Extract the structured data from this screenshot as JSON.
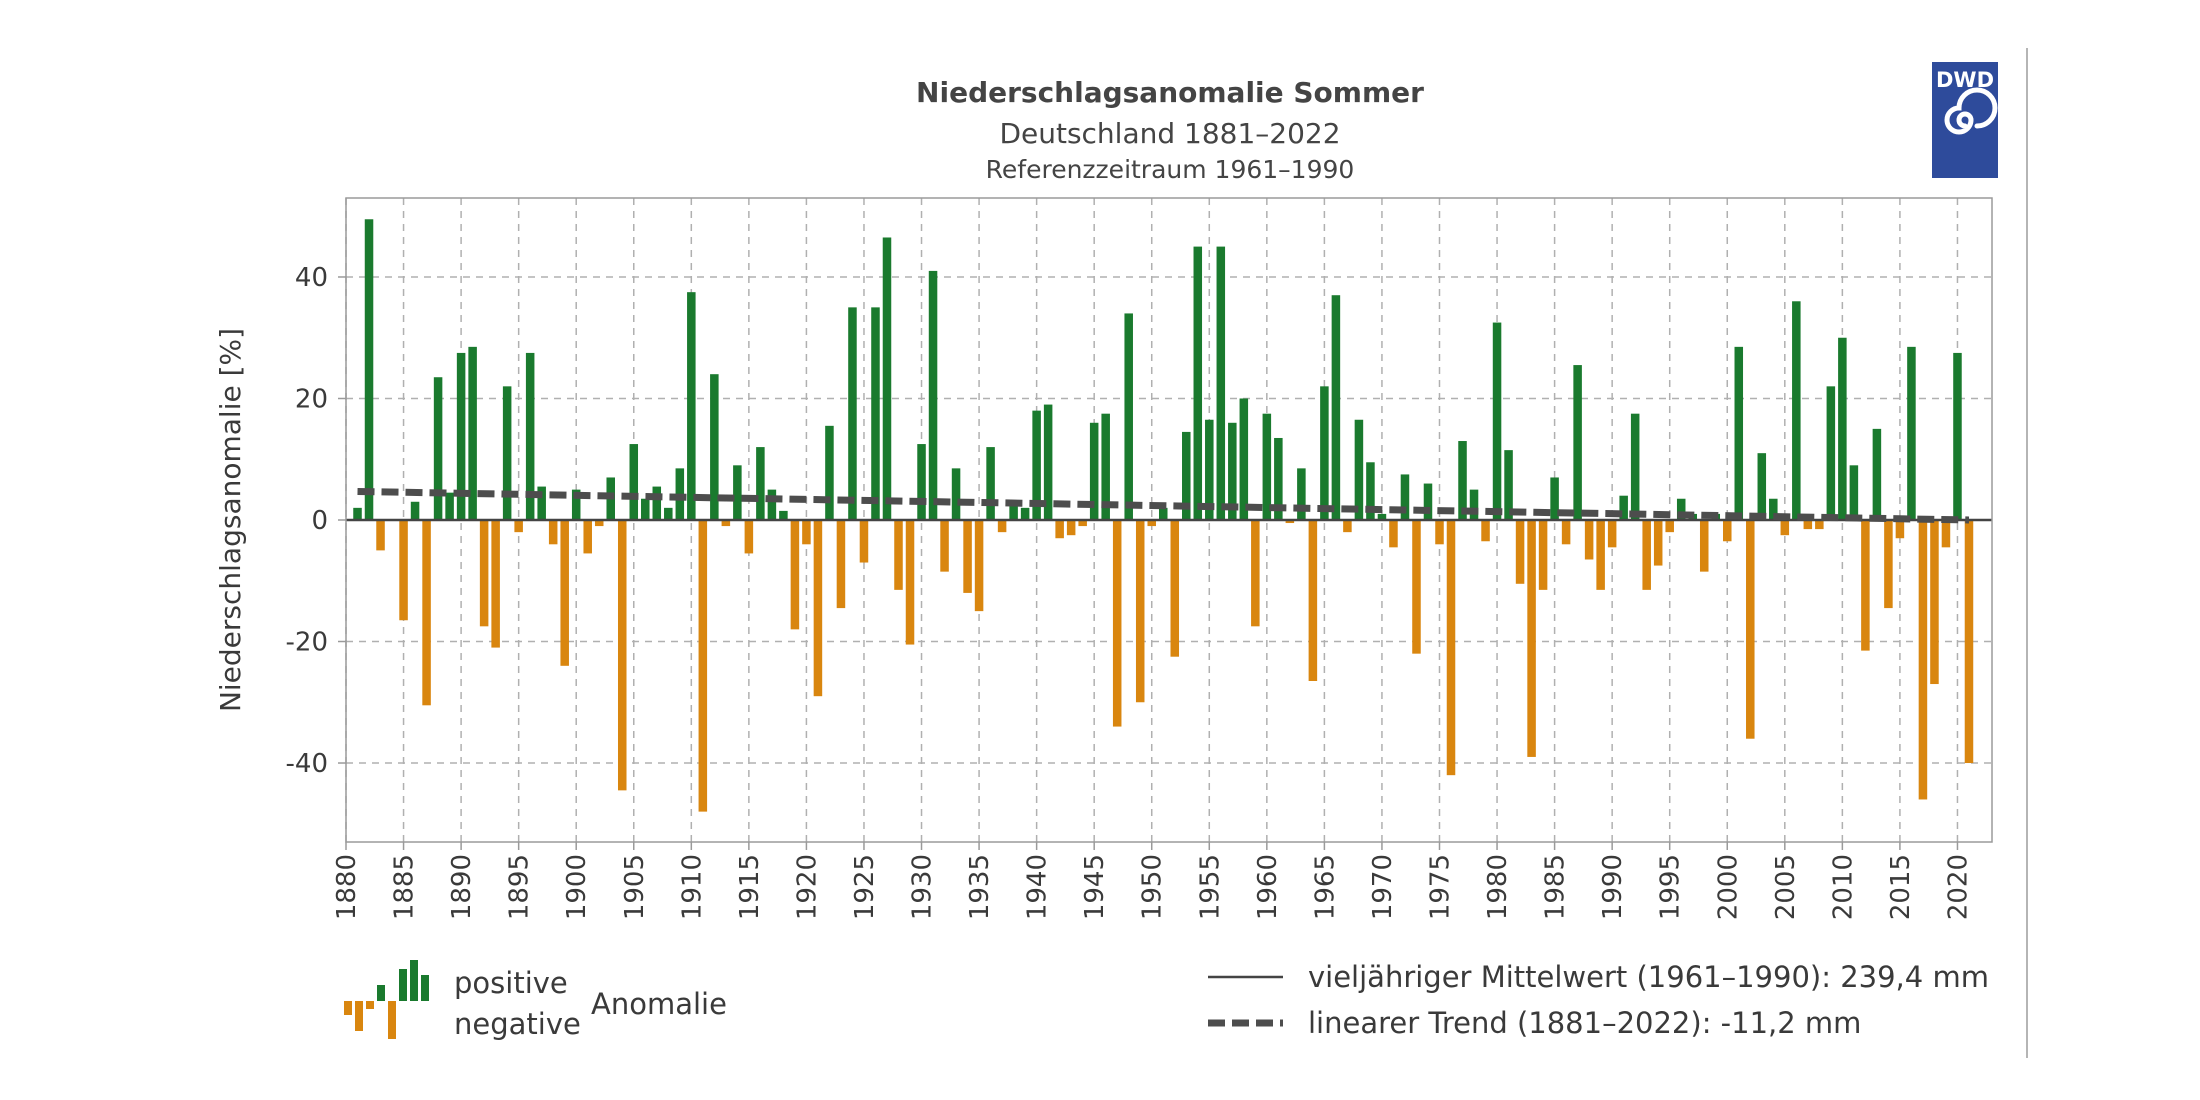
{
  "header": {
    "title": "Niederschlagsanomalie Sommer",
    "subtitle": "Deutschland 1881–2022",
    "reference": "Referenzzeitraum 1961–1990"
  },
  "logo": {
    "text": "DWD",
    "color": "#2e4b9b",
    "icon": "dwd-swirl-icon"
  },
  "colors": {
    "positive": "#1a7a2e",
    "negative": "#d9860f",
    "trend": "#4d4d4d",
    "grid": "#b0b0b0",
    "frame": "#9a9a9a"
  },
  "legend": {
    "positive": "positive",
    "negative": "negative",
    "anomaly": "Anomalie",
    "mean": "vieljähriger Mittelwert (1961–1990): 239,4 mm",
    "trend": "linearer Trend (1881–2022): -11,2 mm"
  },
  "chart_data": {
    "type": "bar",
    "title": "Niederschlagsanomalie Sommer",
    "ylabel": "Niederschlagsanomalie [%]",
    "xlim": [
      1880,
      2023
    ],
    "ylim": [
      -53,
      53
    ],
    "xticks": [
      "1880",
      "1885",
      "1890",
      "1895",
      "1900",
      "1905",
      "1910",
      "1915",
      "1920",
      "1925",
      "1930",
      "1935",
      "1940",
      "1945",
      "1950",
      "1955",
      "1960",
      "1965",
      "1970",
      "1975",
      "1980",
      "1985",
      "1990",
      "1995",
      "2000",
      "2005",
      "2010",
      "2015",
      "2020"
    ],
    "yticks": [
      "40",
      "20",
      "0",
      "-20",
      "-40"
    ],
    "grid": true,
    "start_year": 1881,
    "values": [
      2,
      49.5,
      -5,
      0,
      -16.5,
      3,
      -30.5,
      23.5,
      4.5,
      27.5,
      28.5,
      -17.5,
      -21,
      22,
      -2,
      27.5,
      5.5,
      -4,
      -24,
      5,
      -5.5,
      -1,
      7,
      -44.5,
      12.5,
      3.5,
      5.5,
      2,
      8.5,
      37.5,
      -48,
      24,
      -1,
      9,
      -5.5,
      12,
      5,
      1.5,
      -18,
      -4,
      -29,
      15.5,
      -14.5,
      35,
      -7,
      35,
      46.5,
      -11.5,
      -20.5,
      12.5,
      41,
      -8.5,
      8.5,
      -12,
      -15,
      12,
      -2,
      2.5,
      2,
      18,
      19,
      -3,
      -2.5,
      -1,
      16,
      17.5,
      -34,
      34,
      -30,
      -1,
      2,
      -22.5,
      14.5,
      45,
      16.5,
      45,
      16,
      20,
      -17.5,
      17.5,
      13.5,
      -0.5,
      8.5,
      -26.5,
      22,
      37,
      -2,
      16.5,
      9.5,
      1,
      -4.5,
      7.5,
      -22,
      6,
      -4,
      -42,
      13,
      5,
      -3.5,
      32.5,
      11.5,
      -10.5,
      -39,
      -11.5,
      7,
      -4,
      25.5,
      -6.5,
      -11.5,
      -4.5,
      4,
      17.5,
      -11.5,
      -7.5,
      -2,
      3.5,
      1,
      -8.5,
      1,
      -3.5,
      28.5,
      -36,
      11,
      3.5,
      -2.5,
      36,
      -1.5,
      -1.5,
      22,
      30,
      9,
      -21.5,
      15,
      -14.5,
      -3,
      28.5,
      -46,
      -27,
      -4.5,
      27.5,
      -40
    ],
    "trend": {
      "name": "linearer Trend (1881–2022): -11,2 mm",
      "start": 4.7,
      "end": 0
    },
    "mean": {
      "name": "vieljähriger Mittelwert (1961–1990): 239,4 mm",
      "value": 239.4,
      "unit": "mm"
    }
  }
}
